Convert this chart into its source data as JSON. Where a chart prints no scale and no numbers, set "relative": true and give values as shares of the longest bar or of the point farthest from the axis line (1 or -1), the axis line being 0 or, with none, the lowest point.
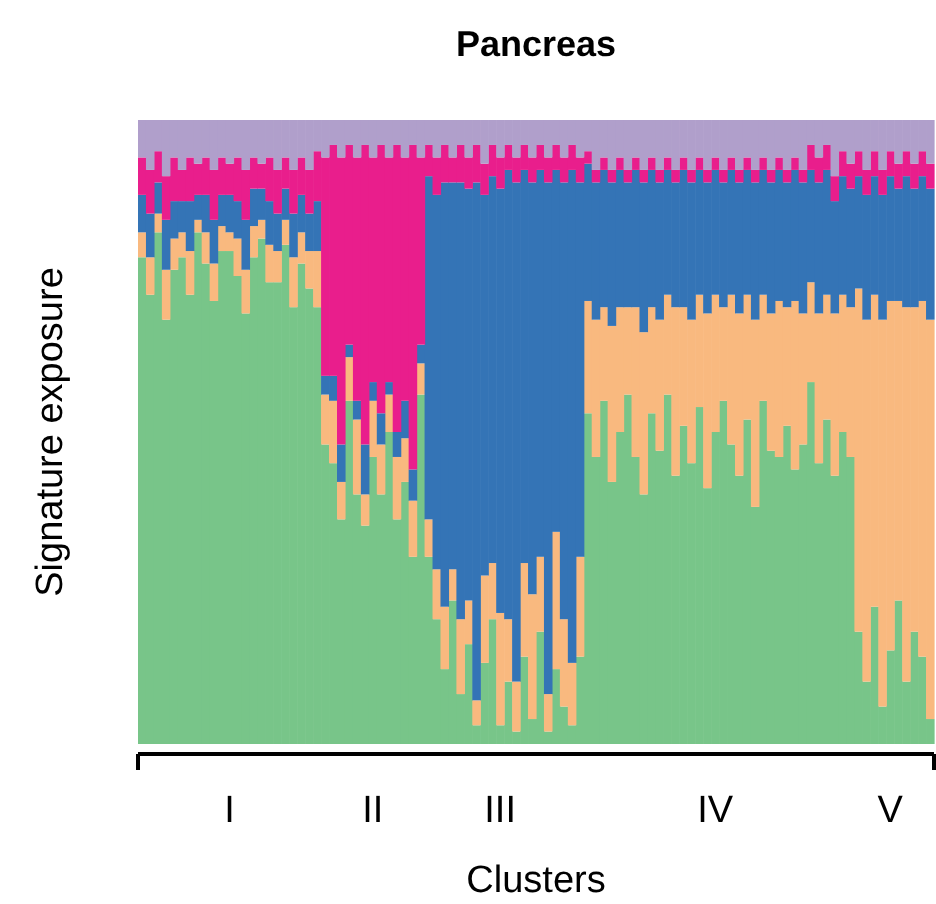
{
  "chart_data": {
    "type": "bar",
    "title": "Pancreas",
    "xlabel": "Clusters",
    "ylabel": "Signature exposure",
    "stacked": true,
    "relative": true,
    "tick_labels": "x",
    "categories": [
      null,
      null,
      null,
      null,
      null,
      null,
      null,
      null,
      null,
      null,
      null,
      "I",
      null,
      null,
      null,
      null,
      null,
      null,
      null,
      null,
      null,
      null,
      null,
      null,
      null,
      null,
      null,
      null,
      null,
      "II",
      null,
      null,
      null,
      null,
      null,
      null,
      null,
      null,
      null,
      null,
      null,
      null,
      null,
      null,
      null,
      "III",
      null,
      null,
      null,
      null,
      null,
      null,
      null,
      null,
      null,
      null,
      null,
      null,
      null,
      null,
      null,
      null,
      null,
      null,
      null,
      null,
      null,
      null,
      null,
      null,
      null,
      null,
      "IV",
      null,
      null,
      null,
      null,
      null,
      null,
      null,
      null,
      null,
      null,
      null,
      null,
      null,
      null,
      null,
      null,
      null,
      null,
      null,
      null,
      null,
      "V",
      null,
      null,
      null,
      null,
      null
    ],
    "series": [
      {
        "color": "#78c589",
        "values": [
          0.78,
          0.72,
          0.82,
          0.68,
          0.76,
          0.78,
          0.72,
          0.82,
          0.77,
          0.71,
          0.79,
          0.79,
          0.75,
          0.69,
          0.78,
          0.81,
          0.74,
          0.74,
          0.8,
          0.7,
          0.77,
          0.73,
          0.7,
          0.48,
          0.45,
          0.36,
          0.55,
          0.4,
          0.35,
          0.46,
          0.4,
          0.5,
          0.36,
          0.42,
          0.3,
          0.56,
          0.3,
          0.2,
          0.12,
          0.23,
          0.08,
          0.16,
          0.03,
          0.13,
          0.2,
          0.03,
          0.1,
          0.02,
          0.14,
          0.04,
          0.18,
          0.02,
          0.12,
          0.06,
          0.03,
          0.14,
          0.53,
          0.46,
          0.55,
          0.42,
          0.5,
          0.56,
          0.46,
          0.4,
          0.53,
          0.47,
          0.56,
          0.43,
          0.51,
          0.45,
          0.54,
          0.41,
          0.5,
          0.55,
          0.48,
          0.43,
          0.52,
          0.38,
          0.55,
          0.47,
          0.46,
          0.51,
          0.44,
          0.48,
          0.58,
          0.45,
          0.52,
          0.43,
          0.5,
          0.46,
          0.18,
          0.1,
          0.22,
          0.06,
          0.15,
          0.23,
          0.1,
          0.18,
          0.14,
          0.04
        ]
      },
      {
        "color": "#f9b97f",
        "values": [
          0.04,
          0.06,
          0.03,
          0.08,
          0.05,
          0.04,
          0.07,
          0.02,
          0.05,
          0.06,
          0.04,
          0.03,
          0.06,
          0.07,
          0.05,
          0.03,
          0.06,
          0.05,
          0.04,
          0.08,
          0.05,
          0.06,
          0.09,
          0.08,
          0.1,
          0.06,
          0.07,
          0.12,
          0.05,
          0.09,
          0.08,
          0.06,
          0.1,
          0.07,
          0.09,
          0.05,
          0.06,
          0.08,
          0.1,
          0.05,
          0.12,
          0.07,
          0.04,
          0.14,
          0.09,
          0.18,
          0.1,
          0.08,
          0.15,
          0.2,
          0.12,
          0.06,
          0.22,
          0.14,
          0.1,
          0.16,
          0.18,
          0.22,
          0.15,
          0.25,
          0.2,
          0.14,
          0.24,
          0.26,
          0.17,
          0.21,
          0.16,
          0.27,
          0.19,
          0.23,
          0.18,
          0.28,
          0.22,
          0.15,
          0.24,
          0.26,
          0.2,
          0.3,
          0.17,
          0.22,
          0.25,
          0.19,
          0.27,
          0.21,
          0.16,
          0.24,
          0.2,
          0.26,
          0.22,
          0.24,
          0.55,
          0.58,
          0.5,
          0.62,
          0.56,
          0.48,
          0.6,
          0.52,
          0.57,
          0.64
        ]
      },
      {
        "color": "#3474b6",
        "values": [
          0.06,
          0.07,
          0.05,
          0.08,
          0.06,
          0.05,
          0.08,
          0.04,
          0.06,
          0.07,
          0.05,
          0.06,
          0.06,
          0.08,
          0.06,
          0.05,
          0.07,
          0.06,
          0.05,
          0.07,
          0.06,
          0.06,
          0.08,
          0.03,
          0.04,
          0.06,
          0.02,
          0.03,
          0.08,
          0.03,
          0.05,
          0.02,
          0.04,
          0.06,
          0.05,
          0.03,
          0.55,
          0.6,
          0.68,
          0.62,
          0.7,
          0.66,
          0.83,
          0.61,
          0.62,
          0.68,
          0.72,
          0.8,
          0.63,
          0.66,
          0.62,
          0.82,
          0.58,
          0.7,
          0.79,
          0.6,
          0.22,
          0.22,
          0.22,
          0.23,
          0.22,
          0.2,
          0.22,
          0.24,
          0.22,
          0.22,
          0.2,
          0.2,
          0.22,
          0.22,
          0.2,
          0.21,
          0.2,
          0.2,
          0.2,
          0.21,
          0.2,
          0.22,
          0.2,
          0.21,
          0.21,
          0.2,
          0.21,
          0.21,
          0.18,
          0.21,
          0.2,
          0.18,
          0.19,
          0.19,
          0.18,
          0.2,
          0.19,
          0.2,
          0.2,
          0.18,
          0.21,
          0.19,
          0.2,
          0.21
        ]
      },
      {
        "color": "#e91e8c",
        "values": [
          0.06,
          0.07,
          0.05,
          0.07,
          0.07,
          0.05,
          0.07,
          0.05,
          0.06,
          0.08,
          0.06,
          0.05,
          0.07,
          0.08,
          0.05,
          0.04,
          0.07,
          0.07,
          0.05,
          0.07,
          0.06,
          0.07,
          0.08,
          0.35,
          0.37,
          0.46,
          0.32,
          0.39,
          0.48,
          0.36,
          0.43,
          0.36,
          0.46,
          0.39,
          0.52,
          0.3,
          0.05,
          0.06,
          0.06,
          0.04,
          0.06,
          0.05,
          0.06,
          0.05,
          0.05,
          0.05,
          0.04,
          0.04,
          0.04,
          0.04,
          0.04,
          0.04,
          0.04,
          0.04,
          0.04,
          0.04,
          0.02,
          0.02,
          0.02,
          0.02,
          0.02,
          0.02,
          0.02,
          0.02,
          0.02,
          0.02,
          0.02,
          0.02,
          0.02,
          0.02,
          0.02,
          0.02,
          0.02,
          0.02,
          0.02,
          0.02,
          0.02,
          0.02,
          0.02,
          0.02,
          0.02,
          0.02,
          0.02,
          0.02,
          0.04,
          0.04,
          0.04,
          0.04,
          0.04,
          0.04,
          0.04,
          0.04,
          0.04,
          0.04,
          0.04,
          0.04,
          0.04,
          0.04,
          0.04,
          0.04
        ]
      },
      {
        "color": "#b09fcb",
        "values": [
          0.06,
          0.08,
          0.05,
          0.09,
          0.06,
          0.08,
          0.06,
          0.07,
          0.06,
          0.08,
          0.06,
          0.07,
          0.06,
          0.08,
          0.06,
          0.07,
          0.06,
          0.08,
          0.06,
          0.08,
          0.06,
          0.08,
          0.05,
          0.06,
          0.04,
          0.06,
          0.04,
          0.06,
          0.04,
          0.06,
          0.04,
          0.06,
          0.04,
          0.06,
          0.04,
          0.06,
          0.04,
          0.06,
          0.04,
          0.06,
          0.04,
          0.06,
          0.04,
          0.07,
          0.04,
          0.06,
          0.04,
          0.06,
          0.04,
          0.06,
          0.04,
          0.06,
          0.04,
          0.06,
          0.04,
          0.06,
          0.05,
          0.08,
          0.06,
          0.08,
          0.06,
          0.08,
          0.06,
          0.08,
          0.06,
          0.08,
          0.06,
          0.08,
          0.06,
          0.08,
          0.06,
          0.08,
          0.06,
          0.08,
          0.06,
          0.08,
          0.06,
          0.08,
          0.06,
          0.08,
          0.06,
          0.08,
          0.06,
          0.08,
          0.04,
          0.06,
          0.04,
          0.09,
          0.05,
          0.07,
          0.05,
          0.08,
          0.05,
          0.08,
          0.05,
          0.07,
          0.05,
          0.07,
          0.05,
          0.07
        ]
      }
    ]
  }
}
